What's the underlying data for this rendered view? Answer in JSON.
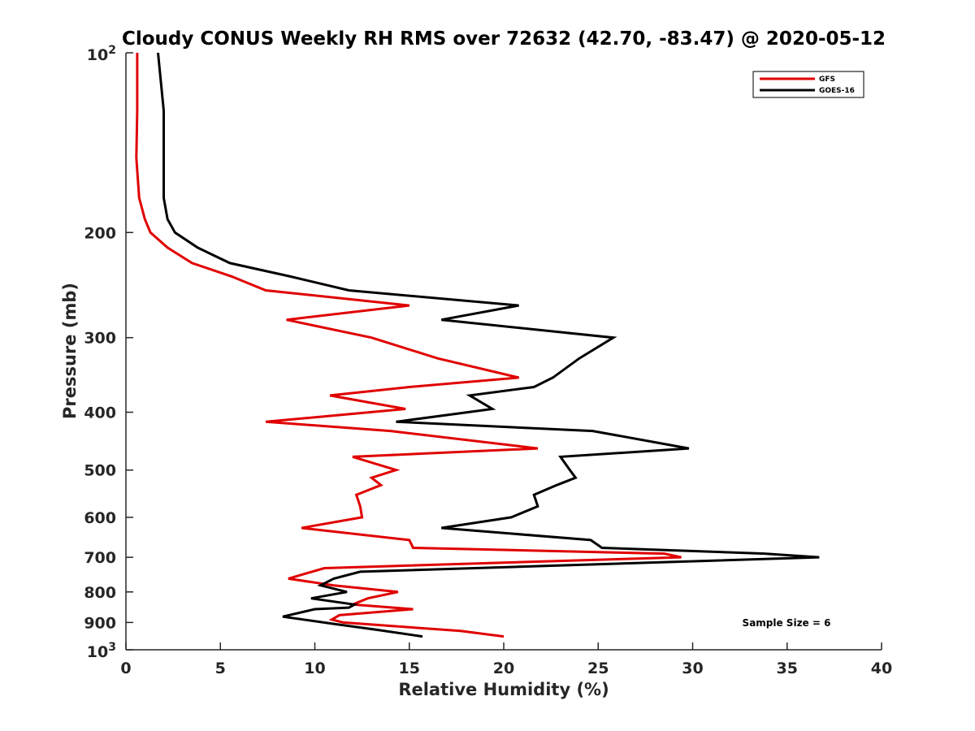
{
  "chart_data": {
    "type": "line",
    "title": "Cloudy CONUS Weekly RH RMS over 72632 (42.70, -83.47) @ 2020-05-12",
    "xlabel": "Relative Humidity (%)",
    "ylabel": "Pressure (mb)",
    "xlim": [
      0,
      40
    ],
    "ylim": [
      100,
      1000
    ],
    "y_scale": "log",
    "y_reversed": true,
    "x_ticks": [
      "0",
      "5",
      "10",
      "15",
      "20",
      "25",
      "30",
      "35",
      "40"
    ],
    "y_ticks": [
      {
        "value": 100,
        "base": "10",
        "exp": "2"
      },
      {
        "value": 200,
        "label": "200"
      },
      {
        "value": 300,
        "label": "300"
      },
      {
        "value": 400,
        "label": "400"
      },
      {
        "value": 500,
        "label": "500"
      },
      {
        "value": 600,
        "label": "600"
      },
      {
        "value": 700,
        "label": "700"
      },
      {
        "value": 800,
        "label": "800"
      },
      {
        "value": 900,
        "label": "900"
      },
      {
        "value": 1000,
        "base": "10",
        "exp": "3"
      }
    ],
    "grid": false,
    "legend_position": "top-right",
    "annotation": "Sample Size = 6",
    "series": [
      {
        "name": "GFS",
        "color": "#e00000",
        "points": [
          [
            0.6,
            100
          ],
          [
            0.6,
            125
          ],
          [
            0.55,
            150
          ],
          [
            0.7,
            175
          ],
          [
            1.0,
            190
          ],
          [
            1.3,
            200
          ],
          [
            2.2,
            212
          ],
          [
            3.5,
            225
          ],
          [
            5.6,
            237
          ],
          [
            7.4,
            250
          ],
          [
            15.0,
            265
          ],
          [
            8.5,
            280
          ],
          [
            13.0,
            300
          ],
          [
            16.5,
            325
          ],
          [
            20.8,
            350
          ],
          [
            15.0,
            363
          ],
          [
            10.8,
            375
          ],
          [
            14.8,
            395
          ],
          [
            7.4,
            415
          ],
          [
            14.0,
            430
          ],
          [
            21.8,
            460
          ],
          [
            12.0,
            475
          ],
          [
            14.3,
            500
          ],
          [
            13.0,
            515
          ],
          [
            13.5,
            530
          ],
          [
            12.2,
            550
          ],
          [
            12.4,
            575
          ],
          [
            12.5,
            600
          ],
          [
            9.3,
            625
          ],
          [
            15.0,
            655
          ],
          [
            15.2,
            675
          ],
          [
            28.5,
            690
          ],
          [
            29.4,
            700
          ],
          [
            10.5,
            730
          ],
          [
            8.6,
            760
          ],
          [
            11.0,
            780
          ],
          [
            14.4,
            800
          ],
          [
            12.8,
            820
          ],
          [
            12.0,
            840
          ],
          [
            15.2,
            855
          ],
          [
            11.3,
            875
          ],
          [
            10.9,
            890
          ],
          [
            11.5,
            900
          ],
          [
            17.7,
            930
          ],
          [
            20.0,
            950
          ]
        ]
      },
      {
        "name": "GOES-16",
        "color": "#000000",
        "points": [
          [
            1.7,
            100
          ],
          [
            2.0,
            125
          ],
          [
            2.0,
            150
          ],
          [
            2.0,
            175
          ],
          [
            2.2,
            190
          ],
          [
            2.6,
            200
          ],
          [
            3.8,
            212
          ],
          [
            5.5,
            225
          ],
          [
            8.7,
            237
          ],
          [
            11.8,
            250
          ],
          [
            20.8,
            265
          ],
          [
            16.7,
            280
          ],
          [
            25.8,
            300
          ],
          [
            24.0,
            325
          ],
          [
            22.6,
            350
          ],
          [
            21.6,
            363
          ],
          [
            18.2,
            375
          ],
          [
            19.4,
            395
          ],
          [
            14.3,
            415
          ],
          [
            24.7,
            430
          ],
          [
            29.8,
            460
          ],
          [
            23.0,
            475
          ],
          [
            23.5,
            500
          ],
          [
            23.8,
            515
          ],
          [
            22.8,
            530
          ],
          [
            21.6,
            550
          ],
          [
            21.8,
            575
          ],
          [
            20.4,
            600
          ],
          [
            16.7,
            625
          ],
          [
            24.6,
            655
          ],
          [
            25.2,
            675
          ],
          [
            33.8,
            690
          ],
          [
            36.7,
            700
          ],
          [
            12.4,
            740
          ],
          [
            11.0,
            760
          ],
          [
            10.3,
            780
          ],
          [
            11.7,
            800
          ],
          [
            9.8,
            820
          ],
          [
            12.1,
            840
          ],
          [
            11.8,
            850
          ],
          [
            10.0,
            855
          ],
          [
            8.3,
            880
          ],
          [
            11.0,
            905
          ],
          [
            13.2,
            925
          ],
          [
            15.7,
            950
          ]
        ]
      }
    ]
  }
}
